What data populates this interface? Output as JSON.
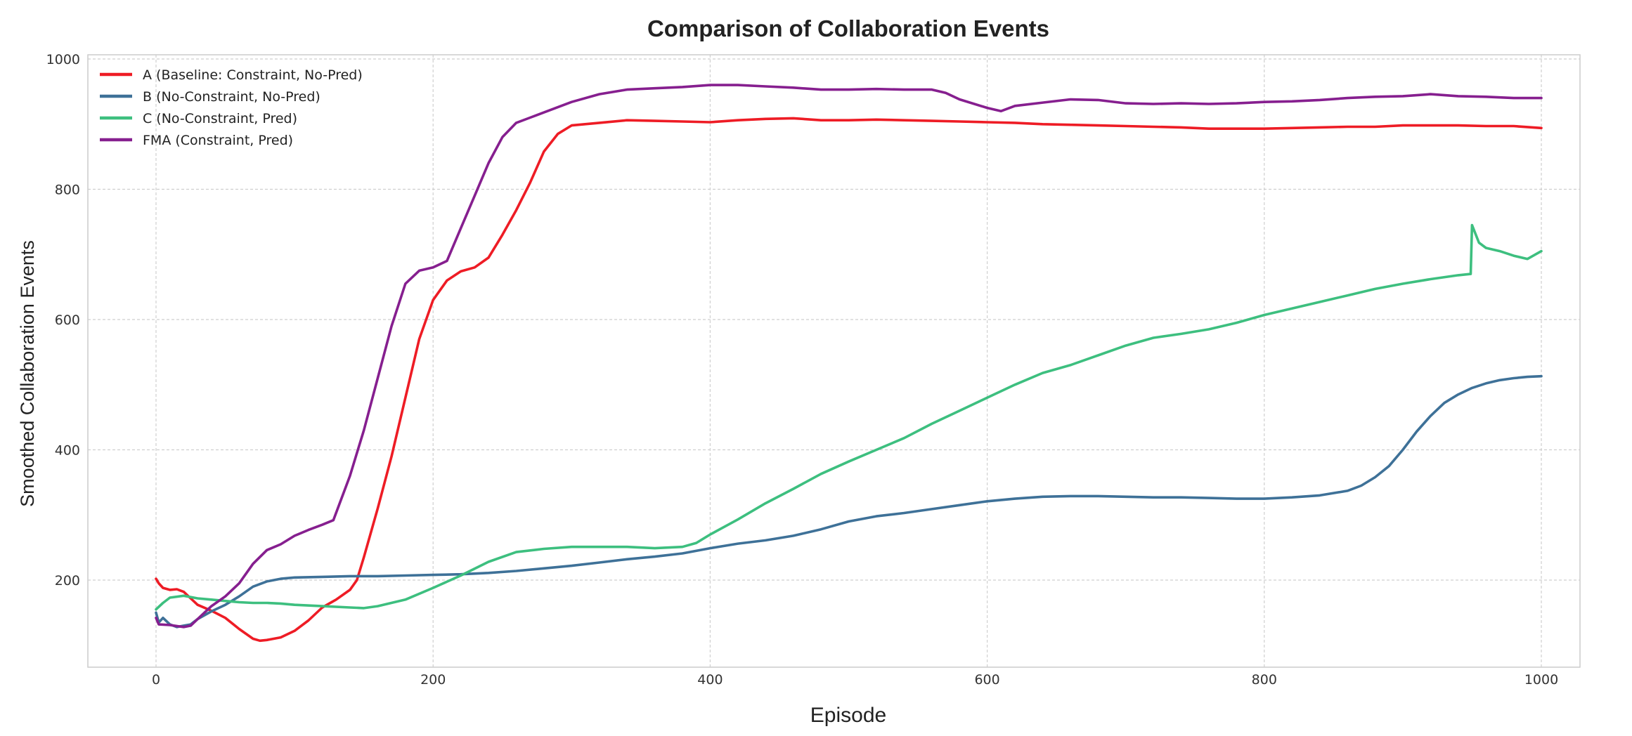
{
  "chart_data": {
    "type": "line",
    "title": "Comparison of Collaboration Events",
    "xlabel": "Episode",
    "ylabel": "Smoothed Collaboration Events",
    "xlim": [
      -50,
      1050
    ],
    "ylim": [
      90,
      1010
    ],
    "xticks": [
      0,
      200,
      400,
      600,
      800,
      1000
    ],
    "yticks": [
      200,
      400,
      600,
      800,
      1000
    ],
    "grid": true,
    "legend_position": "top-left",
    "series": [
      {
        "name": "A (Baseline: Constraint, No-Pred)",
        "color": "#ee1c25",
        "points": [
          [
            0,
            202
          ],
          [
            2,
            195
          ],
          [
            5,
            188
          ],
          [
            10,
            185
          ],
          [
            15,
            186
          ],
          [
            20,
            182
          ],
          [
            25,
            172
          ],
          [
            30,
            162
          ],
          [
            40,
            153
          ],
          [
            50,
            142
          ],
          [
            60,
            125
          ],
          [
            70,
            110
          ],
          [
            75,
            107
          ],
          [
            80,
            108
          ],
          [
            90,
            112
          ],
          [
            100,
            122
          ],
          [
            110,
            138
          ],
          [
            120,
            158
          ],
          [
            130,
            170
          ],
          [
            140,
            185
          ],
          [
            145,
            200
          ],
          [
            150,
            235
          ],
          [
            160,
            310
          ],
          [
            170,
            390
          ],
          [
            180,
            480
          ],
          [
            190,
            570
          ],
          [
            200,
            630
          ],
          [
            210,
            660
          ],
          [
            220,
            674
          ],
          [
            230,
            680
          ],
          [
            240,
            695
          ],
          [
            250,
            730
          ],
          [
            260,
            768
          ],
          [
            270,
            810
          ],
          [
            280,
            858
          ],
          [
            290,
            885
          ],
          [
            300,
            898
          ],
          [
            320,
            902
          ],
          [
            340,
            906
          ],
          [
            360,
            905
          ],
          [
            380,
            904
          ],
          [
            400,
            903
          ],
          [
            420,
            906
          ],
          [
            440,
            908
          ],
          [
            460,
            909
          ],
          [
            480,
            906
          ],
          [
            500,
            906
          ],
          [
            520,
            907
          ],
          [
            540,
            906
          ],
          [
            560,
            905
          ],
          [
            580,
            904
          ],
          [
            600,
            903
          ],
          [
            620,
            902
          ],
          [
            640,
            900
          ],
          [
            660,
            899
          ],
          [
            680,
            898
          ],
          [
            700,
            897
          ],
          [
            720,
            896
          ],
          [
            740,
            895
          ],
          [
            760,
            893
          ],
          [
            780,
            893
          ],
          [
            800,
            893
          ],
          [
            820,
            894
          ],
          [
            840,
            895
          ],
          [
            860,
            896
          ],
          [
            880,
            896
          ],
          [
            900,
            898
          ],
          [
            920,
            898
          ],
          [
            940,
            898
          ],
          [
            960,
            897
          ],
          [
            980,
            897
          ],
          [
            1000,
            894
          ]
        ]
      },
      {
        "name": "B (No-Constraint, No-Pred)",
        "color": "#3e7198",
        "points": [
          [
            0,
            150
          ],
          [
            2,
            135
          ],
          [
            5,
            142
          ],
          [
            10,
            132
          ],
          [
            15,
            128
          ],
          [
            20,
            130
          ],
          [
            25,
            132
          ],
          [
            30,
            140
          ],
          [
            40,
            152
          ],
          [
            50,
            162
          ],
          [
            60,
            175
          ],
          [
            70,
            190
          ],
          [
            80,
            198
          ],
          [
            90,
            202
          ],
          [
            100,
            204
          ],
          [
            120,
            205
          ],
          [
            140,
            206
          ],
          [
            160,
            206
          ],
          [
            180,
            207
          ],
          [
            200,
            208
          ],
          [
            220,
            209
          ],
          [
            240,
            211
          ],
          [
            260,
            214
          ],
          [
            280,
            218
          ],
          [
            300,
            222
          ],
          [
            320,
            227
          ],
          [
            340,
            232
          ],
          [
            360,
            236
          ],
          [
            380,
            241
          ],
          [
            400,
            249
          ],
          [
            420,
            256
          ],
          [
            440,
            261
          ],
          [
            460,
            268
          ],
          [
            480,
            278
          ],
          [
            500,
            290
          ],
          [
            520,
            298
          ],
          [
            540,
            303
          ],
          [
            560,
            309
          ],
          [
            580,
            315
          ],
          [
            600,
            321
          ],
          [
            620,
            325
          ],
          [
            640,
            328
          ],
          [
            660,
            329
          ],
          [
            680,
            329
          ],
          [
            700,
            328
          ],
          [
            720,
            327
          ],
          [
            740,
            327
          ],
          [
            760,
            326
          ],
          [
            780,
            325
          ],
          [
            800,
            325
          ],
          [
            820,
            327
          ],
          [
            840,
            330
          ],
          [
            860,
            337
          ],
          [
            870,
            345
          ],
          [
            880,
            358
          ],
          [
            890,
            375
          ],
          [
            900,
            400
          ],
          [
            910,
            428
          ],
          [
            920,
            452
          ],
          [
            930,
            472
          ],
          [
            940,
            485
          ],
          [
            950,
            495
          ],
          [
            960,
            502
          ],
          [
            970,
            507
          ],
          [
            980,
            510
          ],
          [
            990,
            512
          ],
          [
            1000,
            513
          ]
        ]
      },
      {
        "name": "C (No-Constraint, Pred)",
        "color": "#3dbf7f",
        "points": [
          [
            0,
            155
          ],
          [
            5,
            165
          ],
          [
            10,
            173
          ],
          [
            20,
            176
          ],
          [
            30,
            172
          ],
          [
            40,
            170
          ],
          [
            50,
            168
          ],
          [
            60,
            166
          ],
          [
            70,
            165
          ],
          [
            80,
            165
          ],
          [
            90,
            164
          ],
          [
            100,
            162
          ],
          [
            120,
            160
          ],
          [
            140,
            158
          ],
          [
            150,
            157
          ],
          [
            160,
            160
          ],
          [
            180,
            170
          ],
          [
            200,
            188
          ],
          [
            220,
            207
          ],
          [
            240,
            228
          ],
          [
            260,
            243
          ],
          [
            280,
            248
          ],
          [
            300,
            251
          ],
          [
            320,
            251
          ],
          [
            340,
            251
          ],
          [
            360,
            249
          ],
          [
            380,
            251
          ],
          [
            390,
            257
          ],
          [
            400,
            270
          ],
          [
            420,
            293
          ],
          [
            440,
            318
          ],
          [
            460,
            340
          ],
          [
            480,
            363
          ],
          [
            500,
            382
          ],
          [
            520,
            400
          ],
          [
            540,
            418
          ],
          [
            560,
            440
          ],
          [
            580,
            460
          ],
          [
            600,
            480
          ],
          [
            620,
            500
          ],
          [
            640,
            518
          ],
          [
            660,
            530
          ],
          [
            680,
            545
          ],
          [
            700,
            560
          ],
          [
            720,
            572
          ],
          [
            740,
            578
          ],
          [
            760,
            585
          ],
          [
            780,
            595
          ],
          [
            800,
            607
          ],
          [
            820,
            617
          ],
          [
            840,
            627
          ],
          [
            860,
            637
          ],
          [
            880,
            647
          ],
          [
            900,
            655
          ],
          [
            920,
            662
          ],
          [
            940,
            668
          ],
          [
            949,
            670
          ],
          [
            950,
            745
          ],
          [
            955,
            718
          ],
          [
            960,
            710
          ],
          [
            970,
            705
          ],
          [
            980,
            698
          ],
          [
            990,
            693
          ],
          [
            1000,
            705
          ]
        ]
      },
      {
        "name": "FMA (Constraint, Pred)",
        "color": "#861f8f",
        "points": [
          [
            0,
            142
          ],
          [
            2,
            132
          ],
          [
            10,
            131
          ],
          [
            20,
            128
          ],
          [
            25,
            130
          ],
          [
            30,
            140
          ],
          [
            40,
            160
          ],
          [
            50,
            175
          ],
          [
            60,
            195
          ],
          [
            70,
            225
          ],
          [
            80,
            246
          ],
          [
            90,
            255
          ],
          [
            100,
            268
          ],
          [
            110,
            277
          ],
          [
            120,
            285
          ],
          [
            128,
            292
          ],
          [
            140,
            360
          ],
          [
            150,
            430
          ],
          [
            160,
            510
          ],
          [
            170,
            590
          ],
          [
            180,
            655
          ],
          [
            190,
            675
          ],
          [
            200,
            680
          ],
          [
            210,
            690
          ],
          [
            220,
            740
          ],
          [
            230,
            790
          ],
          [
            240,
            840
          ],
          [
            250,
            880
          ],
          [
            260,
            902
          ],
          [
            270,
            910
          ],
          [
            280,
            918
          ],
          [
            300,
            934
          ],
          [
            320,
            946
          ],
          [
            340,
            953
          ],
          [
            360,
            955
          ],
          [
            380,
            957
          ],
          [
            400,
            960
          ],
          [
            420,
            960
          ],
          [
            440,
            958
          ],
          [
            460,
            956
          ],
          [
            480,
            953
          ],
          [
            500,
            953
          ],
          [
            520,
            954
          ],
          [
            540,
            953
          ],
          [
            560,
            953
          ],
          [
            570,
            948
          ],
          [
            580,
            938
          ],
          [
            600,
            925
          ],
          [
            610,
            920
          ],
          [
            620,
            928
          ],
          [
            640,
            933
          ],
          [
            660,
            938
          ],
          [
            680,
            937
          ],
          [
            700,
            932
          ],
          [
            720,
            931
          ],
          [
            740,
            932
          ],
          [
            760,
            931
          ],
          [
            780,
            932
          ],
          [
            800,
            934
          ],
          [
            820,
            935
          ],
          [
            840,
            937
          ],
          [
            860,
            940
          ],
          [
            880,
            942
          ],
          [
            900,
            943
          ],
          [
            920,
            946
          ],
          [
            940,
            943
          ],
          [
            960,
            942
          ],
          [
            980,
            940
          ],
          [
            1000,
            940
          ]
        ]
      }
    ]
  }
}
